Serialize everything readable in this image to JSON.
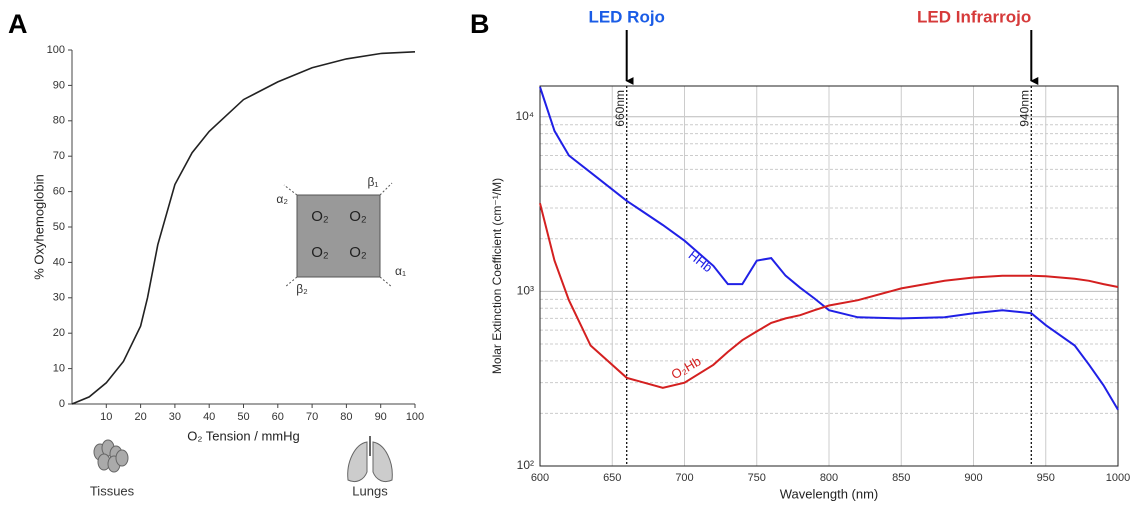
{
  "chart_data": [
    {
      "type": "line",
      "panel": "A",
      "xlabel": "O₂ Tension / mmHg",
      "ylabel": "% Oxyhemoglobin",
      "x": [
        0,
        5,
        10,
        15,
        20,
        22,
        25,
        30,
        35,
        40,
        50,
        60,
        70,
        80,
        90,
        100
      ],
      "values": [
        0,
        2,
        6,
        12,
        22,
        30,
        45,
        62,
        71,
        77,
        86,
        91,
        95,
        97.5,
        99,
        99.5
      ],
      "color": "#222222",
      "xlim": [
        0,
        100
      ],
      "ylim": [
        0,
        100
      ],
      "xticks": [
        10,
        20,
        30,
        40,
        50,
        60,
        70,
        80,
        90,
        100
      ],
      "yticks": [
        0,
        10,
        20,
        30,
        40,
        50,
        60,
        70,
        80,
        90,
        100
      ],
      "inset": {
        "subunits": [
          "α₂",
          "β₁",
          "β₂",
          "α₁"
        ],
        "molecules": [
          "O₂",
          "O₂",
          "O₂",
          "O₂"
        ]
      },
      "captions": [
        "Tissues",
        "Lungs"
      ]
    },
    {
      "type": "line",
      "panel": "B",
      "log_y": true,
      "grid": true,
      "xlabel": "Wavelength (nm)",
      "ylabel": "Molar Extinction Coefficient (cm⁻¹/M)",
      "x": [
        600,
        610,
        620,
        635,
        660,
        685,
        700,
        720,
        730,
        740,
        750,
        760,
        770,
        780,
        790,
        800,
        820,
        850,
        880,
        900,
        920,
        940,
        950,
        970,
        980,
        990,
        1000
      ],
      "series": [
        {
          "name": "HHb",
          "color": "#2020e6",
          "values": [
            14800,
            8300,
            6000,
            4800,
            3300,
            2400,
            1950,
            1400,
            1100,
            1100,
            1500,
            1550,
            1230,
            1050,
            910,
            780,
            710,
            700,
            710,
            750,
            780,
            750,
            640,
            490,
            380,
            290,
            210
          ]
        },
        {
          "name": "O₂Hb",
          "color": "#d42020",
          "values": [
            3200,
            1500,
            890,
            490,
            320,
            280,
            300,
            380,
            450,
            525,
            590,
            660,
            700,
            730,
            780,
            830,
            890,
            1040,
            1150,
            1200,
            1230,
            1230,
            1220,
            1180,
            1150,
            1100,
            1060
          ]
        }
      ],
      "xlim": [
        600,
        1000
      ],
      "ylim": [
        100,
        15000
      ],
      "xticks": [
        600,
        650,
        700,
        750,
        800,
        850,
        900,
        950,
        1000
      ],
      "yticks": [
        {
          "value": 100,
          "label": "10²"
        },
        {
          "value": 1000,
          "label": "10³"
        },
        {
          "value": 10000,
          "label": "10⁴"
        }
      ],
      "markers": [
        {
          "x": 660,
          "label": "660nm",
          "led": "LED Rojo",
          "color": "#1a5ce6"
        },
        {
          "x": 940,
          "label": "940nm",
          "led": "LED Infrarrojo",
          "color": "#d63a3a"
        }
      ]
    }
  ]
}
